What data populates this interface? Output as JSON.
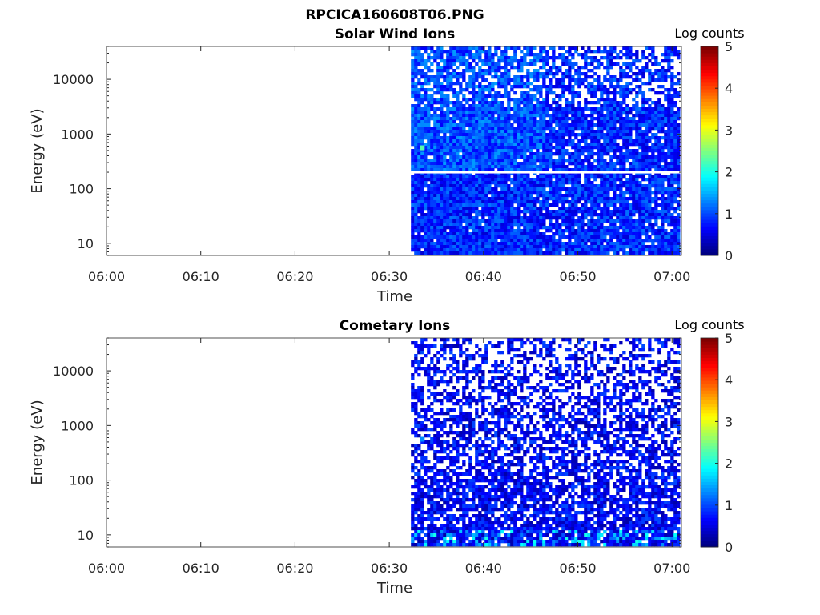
{
  "figure_title": "RPCICA160608T06.PNG",
  "colorbar": {
    "label": "Log counts",
    "min": 0,
    "max": 5,
    "ticks": [
      "0",
      "1",
      "2",
      "3",
      "4",
      "5"
    ]
  },
  "chart_data": [
    {
      "type": "heatmap",
      "title": "Solar Wind Ions",
      "xlabel": "Time",
      "ylabel": "Energy (eV)",
      "x_ticks": [
        "06:00",
        "06:10",
        "06:20",
        "06:30",
        "06:40",
        "06:50",
        "07:00"
      ],
      "x_range_minutes": [
        0,
        61
      ],
      "y_ticks": [
        "10",
        "100",
        "1000",
        "10000"
      ],
      "y_range_eV": [
        6,
        40000
      ],
      "y_scale": "log",
      "data_start_minute": 32.3,
      "data_end_minute": 61,
      "gap_energy_eV": 200,
      "bright_spot": {
        "minute": 33.5,
        "energy_eV": 560,
        "log_counts": 2.3
      },
      "background_log_counts": [
        0.4,
        1.2
      ]
    },
    {
      "type": "heatmap",
      "title": "Cometary Ions",
      "xlabel": "Time",
      "ylabel": "Energy (eV)",
      "x_ticks": [
        "06:00",
        "06:10",
        "06:20",
        "06:30",
        "06:40",
        "06:50",
        "07:00"
      ],
      "x_range_minutes": [
        0,
        61
      ],
      "y_ticks": [
        "10",
        "100",
        "1000",
        "10000"
      ],
      "y_range_eV": [
        6,
        40000
      ],
      "y_scale": "log",
      "data_start_minute": 32.3,
      "data_end_minute": 61,
      "bright_spot": {
        "minute": 33.5,
        "energy_eV": 560,
        "log_counts": 1.3
      },
      "low_energy_band": {
        "energy_eV_max": 10,
        "log_counts": [
          1.0,
          2.0
        ]
      },
      "background_log_counts": [
        0.2,
        1.0
      ]
    }
  ]
}
